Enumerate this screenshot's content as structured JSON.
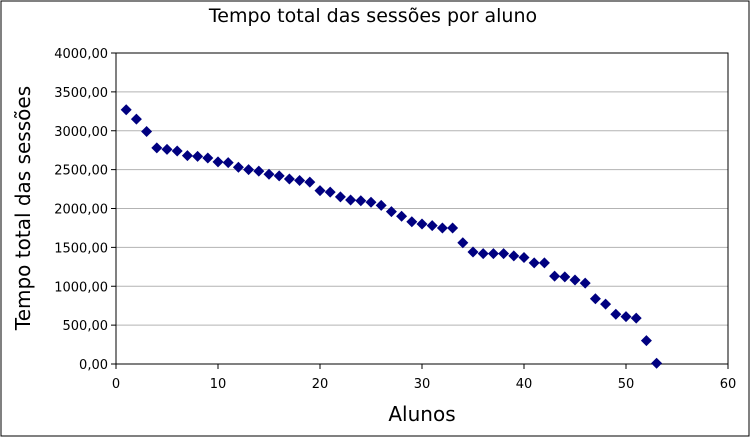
{
  "chart_data": {
    "type": "scatter",
    "title": "Tempo total das sessões por aluno",
    "xlabel": "Alunos",
    "ylabel": "Tempo total das sessões",
    "xlim": [
      0,
      60
    ],
    "ylim": [
      0,
      4000
    ],
    "x_ticks": [
      "0",
      "10",
      "20",
      "30",
      "40",
      "50",
      "60"
    ],
    "y_ticks": [
      "0,00",
      "500,00",
      "1000,00",
      "1500,00",
      "2000,00",
      "2500,00",
      "3000,00",
      "3500,00",
      "4000,00"
    ],
    "grid": "horizontal",
    "legend": "none",
    "marker": "diamond",
    "marker_color": "#000080",
    "series": [
      {
        "x": [
          1,
          2,
          3,
          4,
          5,
          6,
          7,
          8,
          9,
          10,
          11,
          12,
          13,
          14,
          15,
          16,
          17,
          18,
          19,
          20,
          21,
          22,
          23,
          24,
          25,
          26,
          27,
          28,
          29,
          30,
          31,
          32,
          33,
          34,
          35,
          36,
          37,
          38,
          39,
          40,
          41,
          42,
          43,
          44,
          45,
          46,
          47,
          48,
          49,
          50,
          51,
          52,
          53
        ],
        "y": [
          3270,
          3150,
          2990,
          2780,
          2760,
          2740,
          2680,
          2670,
          2650,
          2600,
          2590,
          2530,
          2500,
          2480,
          2440,
          2420,
          2380,
          2360,
          2340,
          2230,
          2210,
          2150,
          2110,
          2100,
          2080,
          2040,
          1960,
          1900,
          1830,
          1800,
          1780,
          1750,
          1750,
          1560,
          1440,
          1420,
          1420,
          1420,
          1390,
          1370,
          1300,
          1300,
          1130,
          1120,
          1080,
          1040,
          840,
          770,
          640,
          610,
          590,
          300,
          10
        ]
      }
    ]
  }
}
